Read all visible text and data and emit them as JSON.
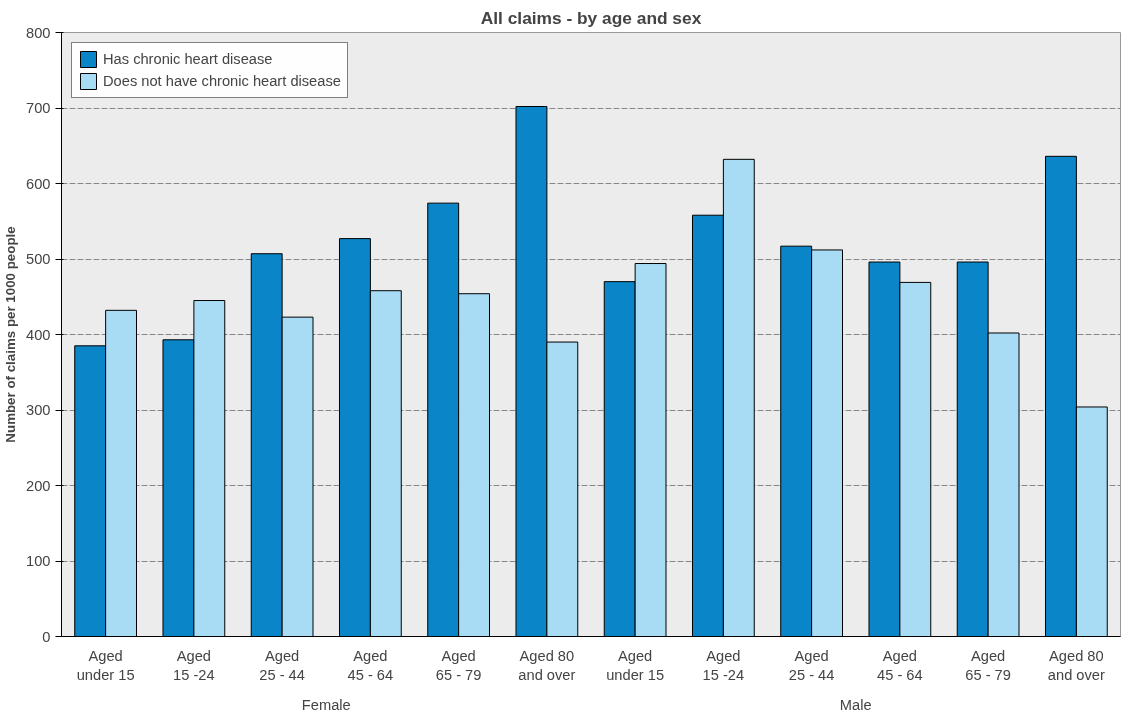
{
  "chart_data": {
    "type": "bar",
    "title": "All claims - by age and sex",
    "ylabel": "Number of claims per 1000 people",
    "categories": [
      "Aged\nunder 15",
      "Aged\n15 -24",
      "Aged\n25 - 44",
      "Aged\n45 - 64",
      "Aged\n65 - 79",
      "Aged 80\nand over",
      "Aged\nunder 15",
      "Aged\n15 -24",
      "Aged\n25 - 44",
      "Aged\n45 - 64",
      "Aged\n65 - 79",
      "Aged 80\nand over"
    ],
    "annotations": [
      "Female",
      "Male"
    ],
    "series": [
      {
        "name": "Has chronic heart disease",
        "color": "#0a86c8",
        "values": [
          385,
          393,
          507,
          527,
          574,
          702,
          470,
          558,
          517,
          496,
          496,
          636
        ]
      },
      {
        "name": "Does not have chronic heart disease",
        "color": "#a8dcf5",
        "values": [
          432,
          445,
          423,
          458,
          454,
          390,
          494,
          632,
          512,
          469,
          402,
          304
        ]
      }
    ],
    "ylim": [
      0,
      800
    ],
    "yticks": [
      0,
      100,
      200,
      300,
      400,
      500,
      600,
      700,
      800
    ],
    "grid": "y",
    "legend": "top left"
  }
}
